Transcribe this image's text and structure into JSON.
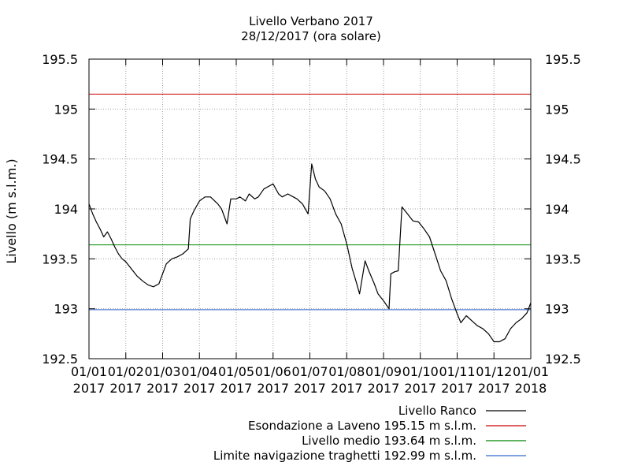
{
  "chart_data": {
    "type": "line",
    "title": "Livello Verbano 2017",
    "subtitle": "28/12/2017 (ora solare)",
    "ylabel": "Livello (m s.l.m.)",
    "xlabel": "",
    "ylim": [
      192.5,
      195.5
    ],
    "y_ticks": [
      "192.5",
      "193",
      "193.5",
      "194",
      "194.5",
      "195",
      "195.5"
    ],
    "y_tick_values": [
      192.5,
      193,
      193.5,
      194,
      194.5,
      195,
      195.5
    ],
    "x_ticks": [
      {
        "line1": "01/01",
        "line2": "2017",
        "month": 0
      },
      {
        "line1": "01/02",
        "line2": "2017",
        "month": 1
      },
      {
        "line1": "01/03",
        "line2": "2017",
        "month": 2
      },
      {
        "line1": "01/04",
        "line2": "2017",
        "month": 3
      },
      {
        "line1": "01/05",
        "line2": "2017",
        "month": 4
      },
      {
        "line1": "01/06",
        "line2": "2017",
        "month": 5
      },
      {
        "line1": "01/07",
        "line2": "2017",
        "month": 6
      },
      {
        "line1": "01/08",
        "line2": "2017",
        "month": 7
      },
      {
        "line1": "01/09",
        "line2": "2017",
        "month": 8
      },
      {
        "line1": "01/10",
        "line2": "2017",
        "month": 9
      },
      {
        "line1": "01/11",
        "line2": "2017",
        "month": 10
      },
      {
        "line1": "01/12",
        "line2": "2017",
        "month": 11
      },
      {
        "line1": "01/01",
        "line2": "2018",
        "month": 12
      }
    ],
    "grid": true,
    "legend_position": "bottom-right",
    "series": [
      {
        "name": "Livello Ranco",
        "color": "#000000",
        "x": [
          0,
          0.1,
          0.2,
          0.3,
          0.4,
          0.5,
          0.6,
          0.7,
          0.8,
          0.9,
          1.0,
          1.15,
          1.3,
          1.45,
          1.6,
          1.75,
          1.9,
          2.0,
          2.1,
          2.25,
          2.4,
          2.55,
          2.7,
          2.75,
          2.85,
          3.0,
          3.15,
          3.3,
          3.5,
          3.6,
          3.75,
          3.85,
          4.0,
          4.1,
          4.25,
          4.35,
          4.5,
          4.6,
          4.75,
          4.85,
          5.0,
          5.15,
          5.25,
          5.4,
          5.55,
          5.65,
          5.8,
          5.95,
          6.05,
          6.15,
          6.25,
          6.4,
          6.55,
          6.7,
          6.85,
          7.0,
          7.15,
          7.25,
          7.35,
          7.5,
          7.6,
          7.75,
          7.85,
          8.0,
          8.15,
          8.2,
          8.3,
          8.4,
          8.5,
          8.65,
          8.8,
          8.95,
          9.1,
          9.25,
          9.4,
          9.55,
          9.7,
          9.85,
          10.0,
          10.1,
          10.25,
          10.4,
          10.55,
          10.7,
          10.85,
          11.0,
          11.15,
          11.3,
          11.45,
          11.6,
          11.75,
          11.9,
          12.0
        ],
        "y": [
          194.05,
          193.95,
          193.87,
          193.8,
          193.72,
          193.77,
          193.7,
          193.62,
          193.55,
          193.5,
          193.47,
          193.4,
          193.33,
          193.28,
          193.24,
          193.22,
          193.25,
          193.35,
          193.45,
          193.5,
          193.52,
          193.55,
          193.6,
          193.9,
          193.98,
          194.08,
          194.12,
          194.12,
          194.05,
          194.0,
          193.85,
          194.1,
          194.1,
          194.12,
          194.08,
          194.15,
          194.1,
          194.12,
          194.2,
          194.22,
          194.25,
          194.15,
          194.12,
          194.15,
          194.12,
          194.1,
          194.05,
          193.95,
          194.45,
          194.3,
          194.22,
          194.18,
          194.1,
          193.95,
          193.85,
          193.65,
          193.4,
          193.28,
          193.15,
          193.48,
          193.38,
          193.25,
          193.15,
          193.08,
          193.0,
          193.35,
          193.37,
          193.38,
          194.02,
          193.95,
          193.88,
          193.87,
          193.8,
          193.72,
          193.55,
          193.38,
          193.28,
          193.1,
          192.95,
          192.86,
          192.93,
          192.88,
          192.83,
          192.8,
          192.75,
          192.67,
          192.67,
          192.7,
          192.8,
          192.86,
          192.9,
          192.96,
          193.06
        ]
      }
    ],
    "reference_lines": [
      {
        "name": "Esondazione a Laveno 195.15 m s.l.m.",
        "value": 195.15,
        "color": "#cc0000"
      },
      {
        "name": "Livello medio 193.64 m s.l.m.",
        "value": 193.64,
        "color": "#008800"
      },
      {
        "name": "Limite navigazione traghetti 192.99 m s.l.m.",
        "value": 192.99,
        "color": "#3366cc"
      }
    ]
  }
}
